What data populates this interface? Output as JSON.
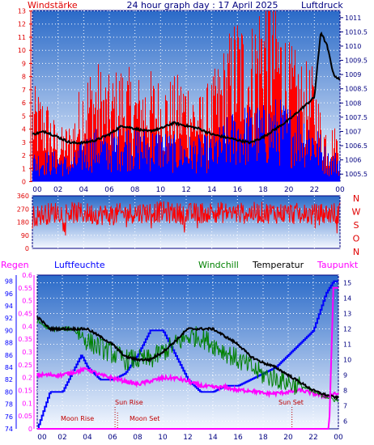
{
  "panel1": {
    "title": "24 hour graph day : 17 April 2025",
    "left_label": "Windstärke",
    "right_label": "Luftdruck",
    "y_left_ticks": [
      "0",
      "1",
      "2",
      "3",
      "4",
      "5",
      "6",
      "7",
      "8",
      "9",
      "10",
      "11",
      "12",
      "13"
    ],
    "y_right_ticks": [
      "1005.5",
      "1006",
      "1006.5",
      "1007",
      "1007.5",
      "1008",
      "1008.5",
      "1009",
      "1009.5",
      "1010",
      "1010.5",
      "1011"
    ],
    "x_ticks": [
      "00",
      "02",
      "04",
      "06",
      "08",
      "10",
      "12",
      "14",
      "16",
      "18",
      "20",
      "22",
      "00"
    ]
  },
  "panel2": {
    "y_ticks": [
      "360",
      "270",
      "180",
      "90",
      "0"
    ],
    "dir_labels": [
      "N",
      "W",
      "S",
      "O",
      "N"
    ]
  },
  "panel3": {
    "legend": {
      "regen": "Regen",
      "luftfeuchte": "Luftfeuchte",
      "windchill": "Windchill",
      "temperatur": "Temperatur",
      "taupunkt": "Taupunkt"
    },
    "y_humidity_ticks": [
      "74",
      "76",
      "78",
      "80",
      "82",
      "84",
      "86",
      "88",
      "90",
      "92",
      "94",
      "96",
      "98"
    ],
    "y_rain_ticks": [
      "0",
      "0.05",
      "0.1",
      "0.15",
      "0.2",
      "0.25",
      "0.3",
      "0.35",
      "0.4",
      "0.45",
      "0.5",
      "0.55",
      "0.6"
    ],
    "y_temp_ticks": [
      "6",
      "7",
      "8",
      "9",
      "10",
      "11",
      "12",
      "13",
      "14",
      "15"
    ],
    "x_ticks": [
      "00",
      "02",
      "04",
      "06",
      "08",
      "10",
      "12",
      "14",
      "16",
      "18",
      "20",
      "22",
      "00"
    ],
    "annotations": {
      "moon_rise": "Moon Rise",
      "sun_rise": "Sun Rise",
      "moon_set": "Moon Set",
      "sun_set": "Sun Set"
    }
  },
  "colors": {
    "frame": "#000080",
    "bg_top": "#2060c0",
    "bg_bottom": "#ffffff",
    "wind_gust": "#ff0000",
    "wind_avg": "#0000ff",
    "pressure": "#000000",
    "wind_dir": "#ff0000",
    "humidity": "#0000ff",
    "rain": "#ff00ff",
    "windchill": "#008000",
    "temperature": "#000000",
    "dewpoint": "#ff00ff",
    "annot": "#c00000"
  },
  "chart_data": [
    {
      "type": "bar",
      "name": "wind_and_pressure",
      "x_unit": "hour",
      "wind_ylim": [
        0,
        13
      ],
      "pressure_ylim": [
        1005.25,
        1011.25
      ],
      "wind_gust_keypoints": [
        [
          0,
          5.5
        ],
        [
          1,
          5
        ],
        [
          2,
          3
        ],
        [
          3,
          3.5
        ],
        [
          4,
          6.5
        ],
        [
          5,
          7
        ],
        [
          6,
          6
        ],
        [
          7,
          7
        ],
        [
          8,
          6
        ],
        [
          9,
          6.5
        ],
        [
          10,
          6
        ],
        [
          11,
          6
        ],
        [
          12,
          6.5
        ],
        [
          13,
          5
        ],
        [
          14,
          6
        ],
        [
          15,
          8
        ],
        [
          16,
          10
        ],
        [
          17,
          9
        ],
        [
          18,
          12
        ],
        [
          19,
          11
        ],
        [
          20,
          8
        ],
        [
          21,
          7
        ],
        [
          22,
          6.5
        ],
        [
          22.5,
          4
        ],
        [
          23,
          3.5
        ],
        [
          24,
          3
        ]
      ],
      "wind_avg_keypoints": [
        [
          0,
          2
        ],
        [
          1,
          2
        ],
        [
          2,
          2
        ],
        [
          3,
          1.5
        ],
        [
          4,
          3
        ],
        [
          5,
          3.5
        ],
        [
          6,
          3
        ],
        [
          7,
          4
        ],
        [
          8,
          3.5
        ],
        [
          9,
          3.5
        ],
        [
          10,
          3.5
        ],
        [
          11,
          3
        ],
        [
          12,
          3
        ],
        [
          13,
          3
        ],
        [
          14,
          3
        ],
        [
          15,
          4
        ],
        [
          16,
          5
        ],
        [
          17,
          5
        ],
        [
          18,
          5
        ],
        [
          19,
          5.5
        ],
        [
          20,
          5
        ],
        [
          21,
          5
        ],
        [
          22,
          4
        ],
        [
          23,
          2
        ],
        [
          24,
          2
        ]
      ],
      "pressure_keypoints": [
        [
          0,
          1006.9
        ],
        [
          1,
          1007
        ],
        [
          2,
          1006.8
        ],
        [
          3,
          1006.6
        ],
        [
          4,
          1006.6
        ],
        [
          5,
          1006.7
        ],
        [
          6,
          1006.9
        ],
        [
          7,
          1007.2
        ],
        [
          8,
          1007.1
        ],
        [
          9,
          1007.0
        ],
        [
          10,
          1007.1
        ],
        [
          11,
          1007.3
        ],
        [
          12,
          1007.2
        ],
        [
          13,
          1007.1
        ],
        [
          14,
          1006.9
        ],
        [
          15,
          1006.8
        ],
        [
          16,
          1006.7
        ],
        [
          17,
          1006.6
        ],
        [
          18,
          1006.8
        ],
        [
          19,
          1007.1
        ],
        [
          20,
          1007.4
        ],
        [
          21,
          1007.8
        ],
        [
          22,
          1008.2
        ],
        [
          22.5,
          1010.5
        ],
        [
          23,
          1010
        ],
        [
          23.5,
          1009
        ],
        [
          24,
          1008.8
        ]
      ]
    },
    {
      "type": "line",
      "name": "wind_direction",
      "ylim": [
        0,
        360
      ],
      "band_deg": [
        180,
        300
      ],
      "keypoints": [
        [
          0,
          220
        ],
        [
          2,
          250
        ],
        [
          4,
          240
        ],
        [
          6,
          230
        ],
        [
          8,
          245
        ],
        [
          10,
          250
        ],
        [
          12,
          235
        ],
        [
          14,
          250
        ],
        [
          16,
          240
        ],
        [
          18,
          245
        ],
        [
          20,
          240
        ],
        [
          22,
          230
        ],
        [
          24,
          245
        ]
      ]
    },
    {
      "type": "line",
      "name": "humidity_rain_temperature",
      "humidity_ylim": [
        74,
        99
      ],
      "rain_ylim": [
        0,
        0.6
      ],
      "temp_ylim": [
        5.5,
        15.5
      ],
      "humidity_keypoints": [
        [
          0,
          74
        ],
        [
          1,
          80
        ],
        [
          2,
          80
        ],
        [
          3,
          84
        ],
        [
          3.5,
          86
        ],
        [
          4,
          84
        ],
        [
          5,
          82
        ],
        [
          6,
          82
        ],
        [
          7,
          83
        ],
        [
          8,
          86
        ],
        [
          9,
          90
        ],
        [
          10,
          90
        ],
        [
          11,
          86
        ],
        [
          12,
          82
        ],
        [
          13,
          80
        ],
        [
          14,
          80
        ],
        [
          15,
          81
        ],
        [
          16,
          81
        ],
        [
          17,
          82
        ],
        [
          18,
          83
        ],
        [
          19,
          84
        ],
        [
          20,
          86
        ],
        [
          21,
          88
        ],
        [
          22,
          90
        ],
        [
          23,
          96
        ],
        [
          23.6,
          98
        ],
        [
          24,
          98
        ]
      ],
      "rain_keypoints": [
        [
          0,
          0
        ],
        [
          23.2,
          0
        ],
        [
          23.3,
          0.05
        ],
        [
          23.6,
          0.55
        ],
        [
          24,
          0.55
        ]
      ],
      "temperature_keypoints": [
        [
          0,
          12.8
        ],
        [
          1,
          12
        ],
        [
          2,
          12
        ],
        [
          3,
          12
        ],
        [
          4,
          12
        ],
        [
          5,
          11.5
        ],
        [
          6,
          11
        ],
        [
          7,
          10.2
        ],
        [
          8,
          10
        ],
        [
          9,
          10
        ],
        [
          10,
          10.5
        ],
        [
          11,
          11.2
        ],
        [
          12,
          12
        ],
        [
          13,
          12
        ],
        [
          14,
          12
        ],
        [
          15,
          11.5
        ],
        [
          16,
          11
        ],
        [
          17,
          10.2
        ],
        [
          18,
          9.8
        ],
        [
          19,
          9.5
        ],
        [
          20,
          9
        ],
        [
          21,
          8.5
        ],
        [
          22,
          8
        ],
        [
          23,
          7.7
        ],
        [
          24,
          7.5
        ]
      ],
      "windchill_keypoints": [
        [
          0,
          12.5
        ],
        [
          1,
          12
        ],
        [
          2,
          12
        ],
        [
          3,
          12
        ],
        [
          4,
          11.2
        ],
        [
          5,
          10.8
        ],
        [
          6,
          10.4
        ],
        [
          7,
          10
        ],
        [
          8,
          10
        ],
        [
          9,
          10
        ],
        [
          10,
          10.5
        ],
        [
          11,
          11
        ],
        [
          12,
          11.5
        ],
        [
          13,
          11.5
        ],
        [
          14,
          11
        ],
        [
          15,
          10.5
        ],
        [
          16,
          10
        ],
        [
          17,
          9.5
        ],
        [
          18,
          9
        ],
        [
          19,
          8.8
        ],
        [
          20,
          8.5
        ],
        [
          21,
          8.3
        ],
        [
          22,
          7.9
        ],
        [
          23,
          7.6
        ],
        [
          24,
          7.3
        ]
      ],
      "dewpoint_keypoints": [
        [
          0,
          9
        ],
        [
          1,
          9
        ],
        [
          2,
          9
        ],
        [
          3,
          9.2
        ],
        [
          4,
          9.4
        ],
        [
          5,
          9
        ],
        [
          6,
          8.8
        ],
        [
          7,
          8.6
        ],
        [
          8,
          8.4
        ],
        [
          9,
          8.6
        ],
        [
          10,
          8.8
        ],
        [
          11,
          8.8
        ],
        [
          12,
          8.6
        ],
        [
          13,
          8.3
        ],
        [
          14,
          8.2
        ],
        [
          15,
          8.2
        ],
        [
          16,
          8
        ],
        [
          17,
          8
        ],
        [
          18,
          7.8
        ],
        [
          19,
          7.8
        ],
        [
          20,
          7.9
        ],
        [
          21,
          8
        ],
        [
          22,
          7.8
        ],
        [
          23,
          7.6
        ],
        [
          24,
          7.8
        ]
      ],
      "annotation_hours": {
        "moon_rise": 2.5,
        "sun_rise": 6.2,
        "moon_set": 6.4,
        "sun_set": 20.3
      }
    }
  ]
}
